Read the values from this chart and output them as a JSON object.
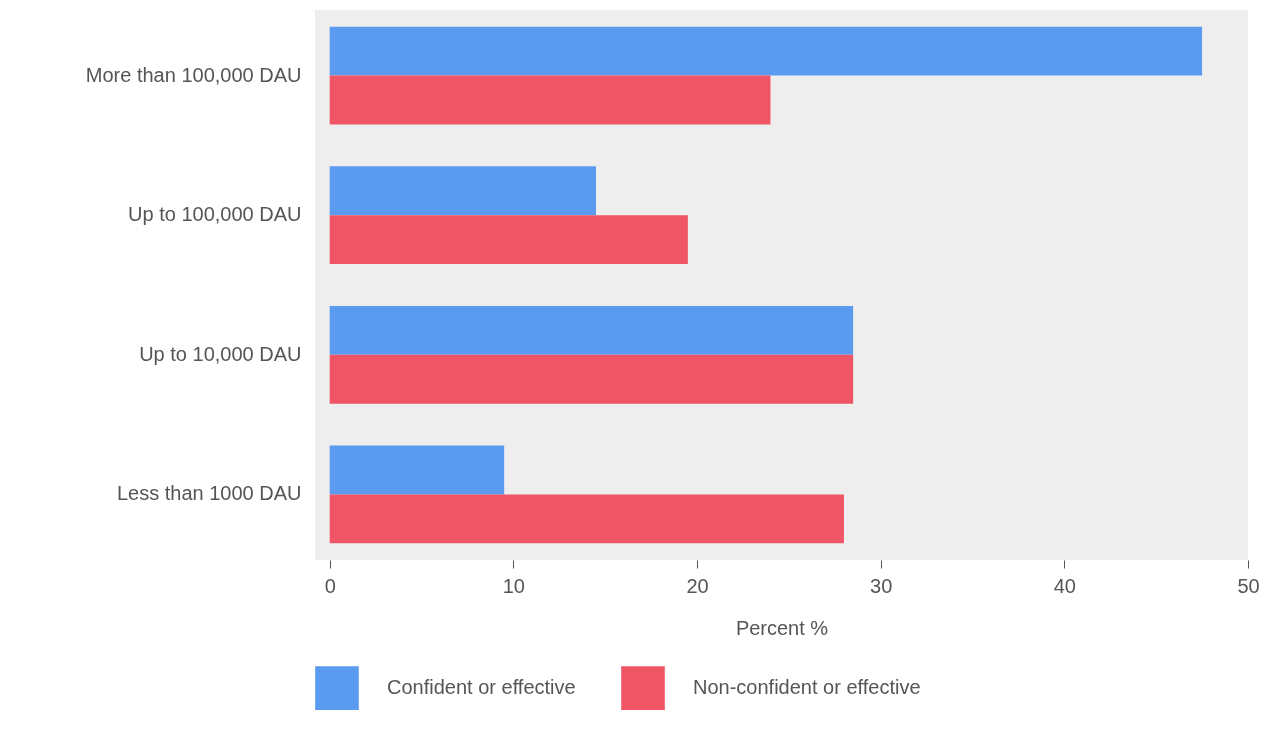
{
  "chart_data": {
    "type": "bar",
    "orientation": "horizontal",
    "xlabel": "Percent %",
    "categories": [
      "More than 100,000 DAU",
      "Up to 100,000 DAU",
      "Up to 10,000 DAU",
      "Less than 1000 DAU"
    ],
    "series": [
      {
        "name": "Confident or effective",
        "color": "#5b9bef",
        "values": [
          47.5,
          14.5,
          28.5,
          9.5
        ]
      },
      {
        "name": "Non-confident or effective",
        "color": "#ef5565",
        "values": [
          24.0,
          19.5,
          28.5,
          28.0
        ]
      }
    ],
    "xlim": [
      -0.8,
      50
    ],
    "xticks": [
      0,
      10,
      20,
      30,
      40,
      50
    ],
    "legend": "bottom",
    "grid": false
  }
}
